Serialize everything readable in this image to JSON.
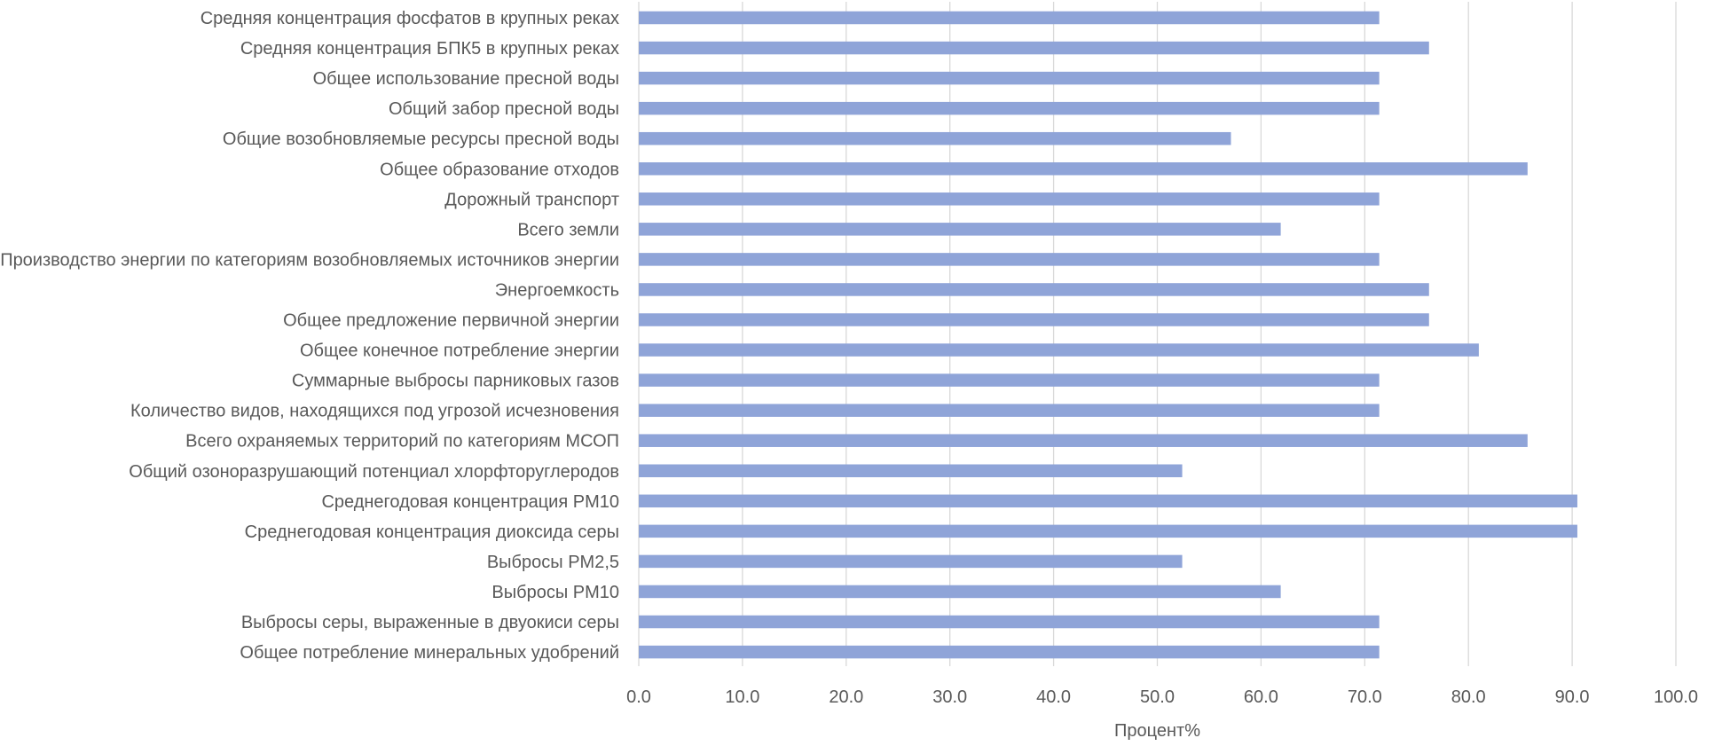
{
  "chart_data": {
    "type": "bar",
    "orientation": "horizontal",
    "categories": [
      "Средняя концентрация фосфатов в крупных реках",
      "Средняя концентрация БПК5 в крупных реках",
      "Общее использование пресной воды",
      "Общий забор пресной воды",
      "Общие возобновляемые ресурсы пресной воды",
      "Общее образование отходов",
      "Дорожный транспорт",
      "Всего земли",
      "Производство энергии по категориям возобновляемых источников энергии",
      "Энергоемкость",
      "Общее предложение первичной энергии",
      "Общее конечное потребление энергии",
      "Суммарные выбросы парниковых газов",
      "Количество видов, находящихся под угрозой исчезновения",
      "Всего охраняемых территорий по категориям МСОП",
      "Общий озоноразрушающий потенциал хлорфторуглеродов",
      "Среднегодовая концентрация PM10",
      "Среднегодовая концентрация диоксида серы",
      "Выбросы PM2,5",
      "Выбросы PM10",
      "Выбросы серы, выраженные в двуокиси серы",
      "Общее потребление минеральных удобрений"
    ],
    "values": [
      71.4,
      76.2,
      71.4,
      71.4,
      57.1,
      85.7,
      71.4,
      61.9,
      71.4,
      76.2,
      76.2,
      81.0,
      71.4,
      71.4,
      85.7,
      52.4,
      90.5,
      90.5,
      52.4,
      61.9,
      71.4,
      71.4
    ],
    "xlabel": "Процент%",
    "ylabel": "",
    "title": "",
    "xlim": [
      0,
      100
    ],
    "xticks": [
      0,
      10,
      20,
      30,
      40,
      50,
      60,
      70,
      80,
      90,
      100
    ],
    "tick_labels": [
      "0.0",
      "10.0",
      "20.0",
      "30.0",
      "40.0",
      "50.0",
      "60.0",
      "70.0",
      "80.0",
      "90.0",
      "100.0"
    ],
    "grid": "vertical",
    "legend": "none",
    "colors": {
      "bar": "#8FA4D8",
      "grid": "#D9D9D9",
      "text": "#595959"
    }
  }
}
